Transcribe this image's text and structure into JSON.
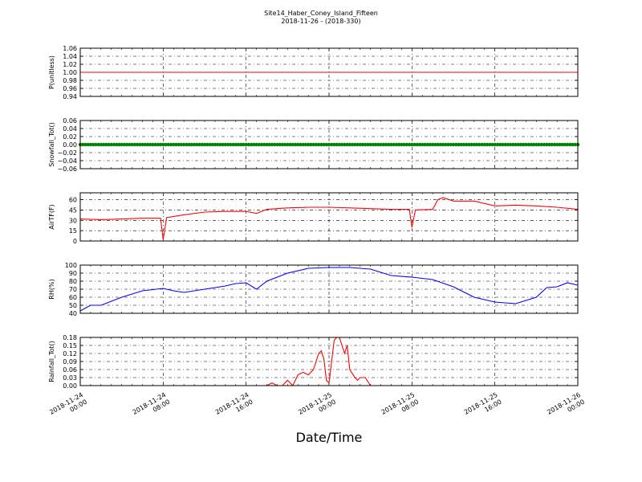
{
  "title": {
    "line1": "Site14_Haber_Coney_Island_Fifteen",
    "line2": "2018-11-26 - (2018-330)"
  },
  "xlabel": "Date/Time",
  "x_ticks": [
    {
      "value": "2018-11-24T00:00",
      "line1": "2018-11-24",
      "line2": "00:00"
    },
    {
      "value": "2018-11-24T08:00",
      "line1": "2018-11-24",
      "line2": "08:00"
    },
    {
      "value": "2018-11-24T16:00",
      "line1": "2018-11-24",
      "line2": "16:00"
    },
    {
      "value": "2018-11-25T00:00",
      "line1": "2018-11-25",
      "line2": "00:00"
    },
    {
      "value": "2018-11-25T08:00",
      "line1": "2018-11-25",
      "line2": "08:00"
    },
    {
      "value": "2018-11-25T16:00",
      "line1": "2018-11-25",
      "line2": "16:00"
    },
    {
      "value": "2018-11-26T00:00",
      "line1": "2018-11-26",
      "line2": "00:00"
    }
  ],
  "chart_data": [
    {
      "type": "line",
      "ylabel": "P(unitless)",
      "ylim": [
        0.94,
        1.06
      ],
      "yticks": [
        "0.94",
        "0.96",
        "0.98",
        "1.00",
        "1.02",
        "1.04",
        "1.06"
      ],
      "grid": true,
      "color": "#ff0000",
      "series": [
        {
          "x": [
            "2018-11-24T00:00",
            "2018-11-26T00:00"
          ],
          "y": [
            1.0,
            1.0
          ]
        }
      ]
    },
    {
      "type": "line",
      "ylabel": "Snowfall_Tot()",
      "ylim": [
        -0.06,
        0.06
      ],
      "yticks": [
        "−0.06",
        "−0.04",
        "−0.02",
        "0.00",
        "0.02",
        "0.04",
        "0.06"
      ],
      "grid": true,
      "color": "#008000",
      "markers": true,
      "series": [
        {
          "x": [
            "2018-11-24T00:00",
            "2018-11-26T00:00"
          ],
          "y": [
            0.0,
            0.0
          ]
        }
      ]
    },
    {
      "type": "line",
      "ylabel": "AirTF(F)",
      "ylim": [
        0,
        70
      ],
      "yticks": [
        "0",
        "15",
        "30",
        "45",
        "60"
      ],
      "ytick_values": [
        0,
        15,
        30,
        45,
        60
      ],
      "grid": true,
      "color": "#ff0000",
      "series": [
        {
          "x": [
            "2018-11-24T00:00",
            "2018-11-24T02:00",
            "2018-11-24T04:00",
            "2018-11-24T06:00",
            "2018-11-24T07:45",
            "2018-11-24T08:00",
            "2018-11-24T08:20",
            "2018-11-24T10:00",
            "2018-11-24T12:00",
            "2018-11-24T14:00",
            "2018-11-24T16:00",
            "2018-11-24T17:00",
            "2018-11-24T18:00",
            "2018-11-24T20:00",
            "2018-11-24T22:00",
            "2018-11-25T00:00",
            "2018-11-25T02:00",
            "2018-11-25T04:00",
            "2018-11-25T06:00",
            "2018-11-25T07:45",
            "2018-11-25T08:00",
            "2018-11-25T08:20",
            "2018-11-25T10:00",
            "2018-11-25T10:30",
            "2018-11-25T11:00",
            "2018-11-25T12:00",
            "2018-11-25T14:00",
            "2018-11-25T16:00",
            "2018-11-25T18:00",
            "2018-11-25T20:00",
            "2018-11-25T22:00",
            "2018-11-26T00:00"
          ],
          "y": [
            32,
            31,
            32,
            33,
            33,
            2,
            34,
            38,
            42,
            43,
            43,
            40,
            46,
            48,
            49,
            49,
            48,
            47,
            46,
            46,
            20,
            45,
            46,
            60,
            63,
            58,
            58,
            51,
            52,
            51,
            49,
            46
          ]
        }
      ]
    },
    {
      "type": "line",
      "ylabel": "RH(%)",
      "ylim": [
        40,
        100
      ],
      "yticks": [
        "40",
        "50",
        "60",
        "70",
        "80",
        "90",
        "100"
      ],
      "grid": true,
      "color": "#0000ff",
      "series": [
        {
          "x": [
            "2018-11-24T00:00",
            "2018-11-24T01:00",
            "2018-11-24T02:00",
            "2018-11-24T04:00",
            "2018-11-24T06:00",
            "2018-11-24T08:00",
            "2018-11-24T09:00",
            "2018-11-24T10:00",
            "2018-11-24T12:00",
            "2018-11-24T14:00",
            "2018-11-24T15:00",
            "2018-11-24T16:00",
            "2018-11-24T17:00",
            "2018-11-24T18:00",
            "2018-11-24T20:00",
            "2018-11-24T22:00",
            "2018-11-25T00:00",
            "2018-11-25T02:00",
            "2018-11-25T04:00",
            "2018-11-25T06:00",
            "2018-11-25T08:00",
            "2018-11-25T10:00",
            "2018-11-25T12:00",
            "2018-11-25T14:00",
            "2018-11-25T16:00",
            "2018-11-25T18:00",
            "2018-11-25T20:00",
            "2018-11-25T21:00",
            "2018-11-25T22:00",
            "2018-11-25T23:00",
            "2018-11-26T00:00"
          ],
          "y": [
            43,
            50,
            50,
            60,
            68,
            71,
            68,
            66,
            70,
            74,
            77,
            78,
            70,
            80,
            90,
            96,
            97,
            97,
            95,
            87,
            85,
            82,
            73,
            60,
            54,
            52,
            60,
            72,
            73,
            78,
            75
          ]
        }
      ]
    },
    {
      "type": "line",
      "ylabel": "Rainfall_Tot()",
      "ylim": [
        0,
        0.18
      ],
      "yticks": [
        "0.00",
        "0.03",
        "0.06",
        "0.09",
        "0.12",
        "0.15",
        "0.18"
      ],
      "grid": true,
      "color": "#ff0000",
      "series": [
        {
          "x": [
            "2018-11-24T00:00",
            "2018-11-24T18:00",
            "2018-11-24T18:30",
            "2018-11-24T19:00",
            "2018-11-24T19:30",
            "2018-11-24T20:00",
            "2018-11-24T20:30",
            "2018-11-24T21:00",
            "2018-11-24T21:30",
            "2018-11-24T22:00",
            "2018-11-24T22:30",
            "2018-11-24T23:00",
            "2018-11-24T23:15",
            "2018-11-24T23:30",
            "2018-11-24T23:45",
            "2018-11-25T00:00",
            "2018-11-25T00:30",
            "2018-11-25T00:45",
            "2018-11-25T01:00",
            "2018-11-25T01:30",
            "2018-11-25T01:45",
            "2018-11-25T02:00",
            "2018-11-25T02:30",
            "2018-11-25T02:45",
            "2018-11-25T03:00",
            "2018-11-25T03:30",
            "2018-11-25T04:00",
            "2018-11-25T04:30",
            "2018-11-25T05:00",
            "2018-11-26T00:00"
          ],
          "y": [
            0,
            0,
            0.01,
            0,
            0,
            0.02,
            0,
            0.04,
            0.05,
            0.04,
            0.06,
            0.12,
            0.13,
            0.1,
            0.02,
            0.01,
            0.17,
            0.18,
            0.18,
            0.12,
            0.15,
            0.06,
            0.03,
            0.02,
            0.03,
            0.03,
            0,
            0,
            0,
            0
          ]
        }
      ]
    }
  ]
}
